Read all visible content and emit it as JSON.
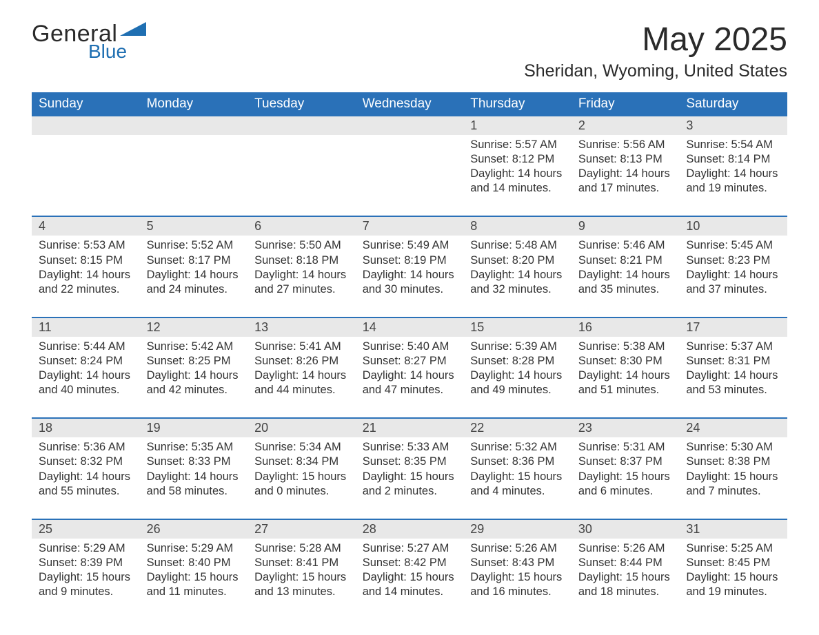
{
  "brand": {
    "general": "General",
    "blue": "Blue"
  },
  "title": "May 2025",
  "location": "Sheridan, Wyoming, United States",
  "colors": {
    "header_bar": "#2a71b8",
    "daynum_bg": "#e8e8e8",
    "text": "#2a2a2a",
    "brand_blue": "#1f6fb2",
    "background": "#ffffff"
  },
  "layout": {
    "columns": 7,
    "rows": 5,
    "blank_leading_cells": 4
  },
  "days_of_week": [
    "Sunday",
    "Monday",
    "Tuesday",
    "Wednesday",
    "Thursday",
    "Friday",
    "Saturday"
  ],
  "labels": {
    "sunrise": "Sunrise: ",
    "sunset": "Sunset: ",
    "daylight": "Daylight: "
  },
  "days": [
    {
      "date": "1",
      "sunrise": "5:57 AM",
      "sunset": "8:12 PM",
      "daylight": "14 hours and 14 minutes."
    },
    {
      "date": "2",
      "sunrise": "5:56 AM",
      "sunset": "8:13 PM",
      "daylight": "14 hours and 17 minutes."
    },
    {
      "date": "3",
      "sunrise": "5:54 AM",
      "sunset": "8:14 PM",
      "daylight": "14 hours and 19 minutes."
    },
    {
      "date": "4",
      "sunrise": "5:53 AM",
      "sunset": "8:15 PM",
      "daylight": "14 hours and 22 minutes."
    },
    {
      "date": "5",
      "sunrise": "5:52 AM",
      "sunset": "8:17 PM",
      "daylight": "14 hours and 24 minutes."
    },
    {
      "date": "6",
      "sunrise": "5:50 AM",
      "sunset": "8:18 PM",
      "daylight": "14 hours and 27 minutes."
    },
    {
      "date": "7",
      "sunrise": "5:49 AM",
      "sunset": "8:19 PM",
      "daylight": "14 hours and 30 minutes."
    },
    {
      "date": "8",
      "sunrise": "5:48 AM",
      "sunset": "8:20 PM",
      "daylight": "14 hours and 32 minutes."
    },
    {
      "date": "9",
      "sunrise": "5:46 AM",
      "sunset": "8:21 PM",
      "daylight": "14 hours and 35 minutes."
    },
    {
      "date": "10",
      "sunrise": "5:45 AM",
      "sunset": "8:23 PM",
      "daylight": "14 hours and 37 minutes."
    },
    {
      "date": "11",
      "sunrise": "5:44 AM",
      "sunset": "8:24 PM",
      "daylight": "14 hours and 40 minutes."
    },
    {
      "date": "12",
      "sunrise": "5:42 AM",
      "sunset": "8:25 PM",
      "daylight": "14 hours and 42 minutes."
    },
    {
      "date": "13",
      "sunrise": "5:41 AM",
      "sunset": "8:26 PM",
      "daylight": "14 hours and 44 minutes."
    },
    {
      "date": "14",
      "sunrise": "5:40 AM",
      "sunset": "8:27 PM",
      "daylight": "14 hours and 47 minutes."
    },
    {
      "date": "15",
      "sunrise": "5:39 AM",
      "sunset": "8:28 PM",
      "daylight": "14 hours and 49 minutes."
    },
    {
      "date": "16",
      "sunrise": "5:38 AM",
      "sunset": "8:30 PM",
      "daylight": "14 hours and 51 minutes."
    },
    {
      "date": "17",
      "sunrise": "5:37 AM",
      "sunset": "8:31 PM",
      "daylight": "14 hours and 53 minutes."
    },
    {
      "date": "18",
      "sunrise": "5:36 AM",
      "sunset": "8:32 PM",
      "daylight": "14 hours and 55 minutes."
    },
    {
      "date": "19",
      "sunrise": "5:35 AM",
      "sunset": "8:33 PM",
      "daylight": "14 hours and 58 minutes."
    },
    {
      "date": "20",
      "sunrise": "5:34 AM",
      "sunset": "8:34 PM",
      "daylight": "15 hours and 0 minutes."
    },
    {
      "date": "21",
      "sunrise": "5:33 AM",
      "sunset": "8:35 PM",
      "daylight": "15 hours and 2 minutes."
    },
    {
      "date": "22",
      "sunrise": "5:32 AM",
      "sunset": "8:36 PM",
      "daylight": "15 hours and 4 minutes."
    },
    {
      "date": "23",
      "sunrise": "5:31 AM",
      "sunset": "8:37 PM",
      "daylight": "15 hours and 6 minutes."
    },
    {
      "date": "24",
      "sunrise": "5:30 AM",
      "sunset": "8:38 PM",
      "daylight": "15 hours and 7 minutes."
    },
    {
      "date": "25",
      "sunrise": "5:29 AM",
      "sunset": "8:39 PM",
      "daylight": "15 hours and 9 minutes."
    },
    {
      "date": "26",
      "sunrise": "5:29 AM",
      "sunset": "8:40 PM",
      "daylight": "15 hours and 11 minutes."
    },
    {
      "date": "27",
      "sunrise": "5:28 AM",
      "sunset": "8:41 PM",
      "daylight": "15 hours and 13 minutes."
    },
    {
      "date": "28",
      "sunrise": "5:27 AM",
      "sunset": "8:42 PM",
      "daylight": "15 hours and 14 minutes."
    },
    {
      "date": "29",
      "sunrise": "5:26 AM",
      "sunset": "8:43 PM",
      "daylight": "15 hours and 16 minutes."
    },
    {
      "date": "30",
      "sunrise": "5:26 AM",
      "sunset": "8:44 PM",
      "daylight": "15 hours and 18 minutes."
    },
    {
      "date": "31",
      "sunrise": "5:25 AM",
      "sunset": "8:45 PM",
      "daylight": "15 hours and 19 minutes."
    }
  ]
}
